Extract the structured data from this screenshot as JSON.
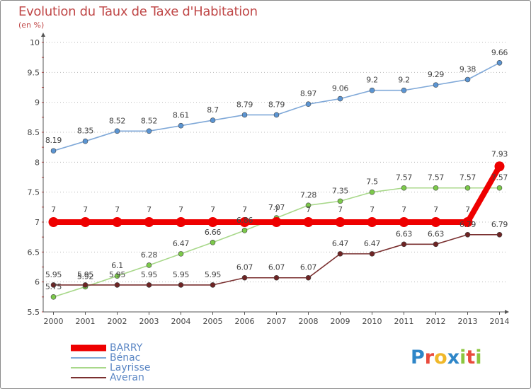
{
  "header": {
    "title": "Evolution du Taux de Taxe d'Habitation",
    "subtitle": "(en %)"
  },
  "logo": {
    "text": "Proxiti",
    "letters": [
      {
        "ch": "P",
        "color": "#2e86c8"
      },
      {
        "ch": "r",
        "color": "#e94a3c"
      },
      {
        "ch": "o",
        "color": "#f0b82a"
      },
      {
        "ch": "x",
        "color": "#2e86c8"
      },
      {
        "ch": "i",
        "color": "#8cc63f"
      },
      {
        "ch": "t",
        "color": "#e94a3c"
      },
      {
        "ch": "i",
        "color": "#8cc63f"
      }
    ]
  },
  "chart_data": {
    "type": "line",
    "title": "Evolution du Taux de Taxe d'Habitation",
    "subtitle": "(en %)",
    "xlabel": "",
    "ylabel": "",
    "x": [
      "2000",
      "2001",
      "2002",
      "2003",
      "2004",
      "2005",
      "2006",
      "2007",
      "2008",
      "2009",
      "2010",
      "2011",
      "2012",
      "2013",
      "2014"
    ],
    "ylim": [
      5.5,
      10
    ],
    "yticks": [
      "5.5",
      "6",
      "6.5",
      "7",
      "7.5",
      "8",
      "8.5",
      "9",
      "9.5",
      "10"
    ],
    "grid": "horizontal-dotted",
    "legend_position": "bottom-left",
    "series": [
      {
        "name": "BARRY",
        "color": "#ee0000",
        "marker_color": "#ee0000",
        "label_color": "#444444",
        "values": [
          7,
          7,
          7,
          7,
          7,
          7,
          7,
          7,
          7,
          7,
          7,
          7,
          7,
          7,
          7.93
        ],
        "labels": [
          "7",
          "7",
          "7",
          "7",
          "7",
          "7",
          "7",
          "7",
          "7",
          "7",
          "7",
          "7",
          "7",
          "7",
          "7.93"
        ],
        "emphasis": true
      },
      {
        "name": "Bénac",
        "color": "#7fa8d8",
        "marker_color": "#5b95d3",
        "label_color": "#444444",
        "values": [
          8.19,
          8.35,
          8.52,
          8.52,
          8.61,
          8.7,
          8.79,
          8.79,
          8.97,
          9.06,
          9.2,
          9.2,
          9.29,
          9.38,
          9.66
        ],
        "labels": [
          "8.19",
          "8.35",
          "8.52",
          "8.52",
          "8.61",
          "8.7",
          "8.79",
          "8.79",
          "8.97",
          "9.06",
          "9.2",
          "9.2",
          "9.29",
          "9.38",
          "9.66"
        ]
      },
      {
        "name": "Layrisse",
        "color": "#a8d88a",
        "marker_color": "#7cc94a",
        "label_color": "#444444",
        "values": [
          5.75,
          5.92,
          6.1,
          6.28,
          6.47,
          6.66,
          6.86,
          7.07,
          7.28,
          7.35,
          7.5,
          7.57,
          7.57,
          7.57,
          7.57
        ],
        "labels": [
          "5.75",
          "5.92",
          "6.1",
          "6.28",
          "6.47",
          "6.66",
          "6.86",
          "7.07",
          "7.28",
          "7.35",
          "7.5",
          "7.57",
          "7.57",
          "7.57",
          "7.57"
        ]
      },
      {
        "name": "Averan",
        "color": "#7a3030",
        "marker_color": "#6e2424",
        "label_color": "#444444",
        "values": [
          5.95,
          5.95,
          5.95,
          5.95,
          5.95,
          5.95,
          6.07,
          6.07,
          6.07,
          6.47,
          6.47,
          6.63,
          6.63,
          6.79,
          6.79
        ],
        "labels": [
          "5.95",
          "5.95",
          "5.95",
          "5.95",
          "5.95",
          "5.95",
          "6.07",
          "6.07",
          "6.07",
          "6.47",
          "6.47",
          "6.63",
          "6.63",
          "6.79",
          "6.79"
        ]
      }
    ]
  }
}
